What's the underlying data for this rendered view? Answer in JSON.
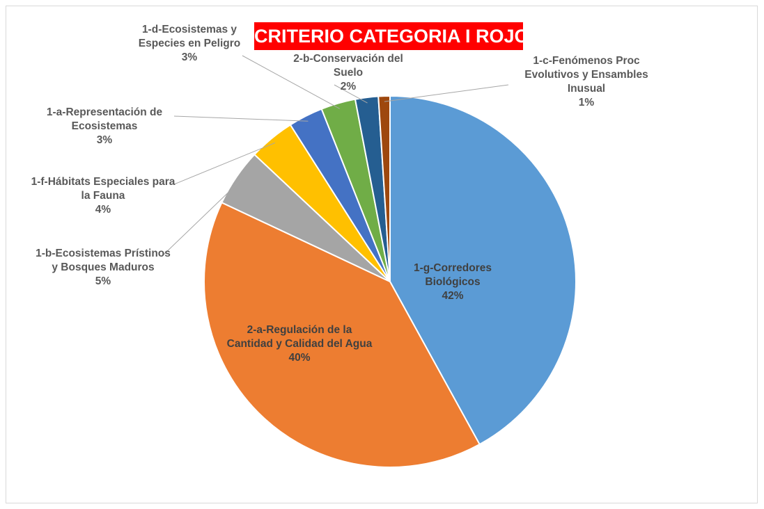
{
  "chart_data": {
    "type": "pie",
    "title": "CRITERIO CATEGORIA I ROJO",
    "categories": [
      "1-g-Corredores Biológicos",
      "2-a-Regulación de la Cantidad y Calidad del Agua",
      "1-b-Ecosistemas Prístinos y Bosques Maduros",
      "1-f-Hábitats Especiales para la Fauna",
      "1-a-Representación de Ecosistemas",
      "1-d-Ecosistemas y Especies en Peligro",
      "2-b-Conservación del Suelo",
      "1-c-Fenómenos Proc Evolutivos y Ensambles Inusual"
    ],
    "values": [
      42,
      40,
      5,
      4,
      3,
      3,
      2,
      1
    ],
    "value_labels": [
      "42%",
      "40%",
      "5%",
      "4%",
      "3%",
      "3%",
      "2%",
      "1%"
    ],
    "colors": [
      "#5b9bd5",
      "#ed7d31",
      "#a5a5a5",
      "#ffc000",
      "#4472c4",
      "#70ad47",
      "#255e91",
      "#9e480e"
    ]
  }
}
